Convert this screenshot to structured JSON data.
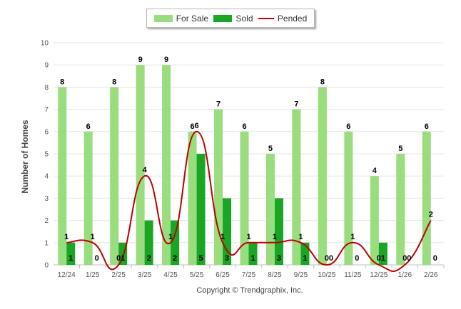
{
  "chart_data": {
    "type": "bar",
    "categories": [
      "12/24",
      "1/25",
      "2/25",
      "3/25",
      "4/25",
      "5/25",
      "6/25",
      "7/25",
      "8/25",
      "9/25",
      "10/25",
      "11/25",
      "12/25",
      "1/26",
      "2/26"
    ],
    "series": [
      {
        "name": "For Sale",
        "type": "bar",
        "color": "#99dd7f",
        "values": [
          8,
          6,
          8,
          9,
          9,
          6,
          7,
          6,
          5,
          7,
          8,
          6,
          4,
          5,
          6
        ]
      },
      {
        "name": "Sold",
        "type": "bar",
        "color": "#19a625",
        "values": [
          1,
          0,
          1,
          2,
          2,
          5,
          3,
          1,
          3,
          1,
          0,
          0,
          1,
          0,
          0
        ]
      },
      {
        "name": "Pended",
        "type": "line",
        "color": "#bf0000",
        "values": [
          1,
          1,
          0,
          4,
          1,
          6,
          1,
          1,
          1,
          1,
          0,
          1,
          0,
          0,
          2
        ]
      }
    ],
    "ylabel": "Number of Homes",
    "ylim": [
      0,
      10
    ],
    "yticks": [
      "0",
      "1",
      "2",
      "3",
      "4",
      "5",
      "6",
      "7",
      "8",
      "9",
      "10"
    ],
    "grid": true,
    "legend_position": "top-center"
  },
  "footer": {
    "copyright": "Copyright © Trendgraphix, Inc."
  }
}
